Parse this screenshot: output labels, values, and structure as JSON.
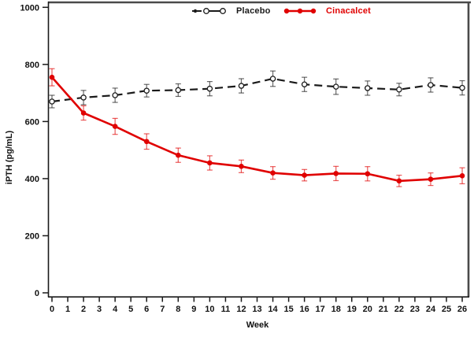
{
  "figure": {
    "y_axis_label": "iPTH (pg/mL)",
    "x_axis_label": "Week"
  },
  "legend": {
    "placebo_label": "Placebo",
    "cinacalcet_label": "Cinacalcet"
  },
  "colors": {
    "placebo": "#1a1a1a",
    "cinacalcet": "#e00000",
    "frame_shadow": "#4a4a4a",
    "axis": "#1a1a1a",
    "tick_text": "#111111"
  },
  "chart_data": {
    "type": "line",
    "title": "",
    "xlabel": "Week",
    "ylabel": "iPTH (pg/mL)",
    "xlim": [
      0,
      26
    ],
    "ylim": [
      0,
      1000
    ],
    "x_ticks": [
      0,
      1,
      2,
      3,
      4,
      5,
      6,
      7,
      8,
      9,
      10,
      11,
      12,
      13,
      14,
      15,
      16,
      17,
      18,
      19,
      20,
      21,
      22,
      23,
      24,
      25,
      26
    ],
    "y_ticks": [
      0,
      200,
      400,
      600,
      800,
      1000
    ],
    "grid": false,
    "legend_position": "top-center",
    "error_bars": true,
    "x": [
      0,
      2,
      4,
      6,
      8,
      10,
      12,
      14,
      16,
      18,
      20,
      22,
      24,
      26
    ],
    "series": [
      {
        "name": "Placebo",
        "color": "#1a1a1a",
        "line_style": "dashed",
        "marker": "open-circle",
        "values": [
          670,
          684,
          692,
          708,
          710,
          715,
          725,
          750,
          730,
          722,
          717,
          712,
          728,
          718
        ],
        "errors": [
          22,
          25,
          25,
          22,
          22,
          25,
          25,
          27,
          25,
          27,
          25,
          22,
          25,
          25
        ]
      },
      {
        "name": "Cinacalcet",
        "color": "#e00000",
        "line_style": "solid",
        "marker": "filled-circle",
        "values": [
          755,
          630,
          583,
          530,
          482,
          455,
          443,
          420,
          412,
          418,
          417,
          392,
          398,
          410
        ],
        "errors": [
          30,
          25,
          28,
          27,
          25,
          25,
          22,
          22,
          20,
          25,
          25,
          20,
          22,
          28
        ]
      }
    ]
  }
}
